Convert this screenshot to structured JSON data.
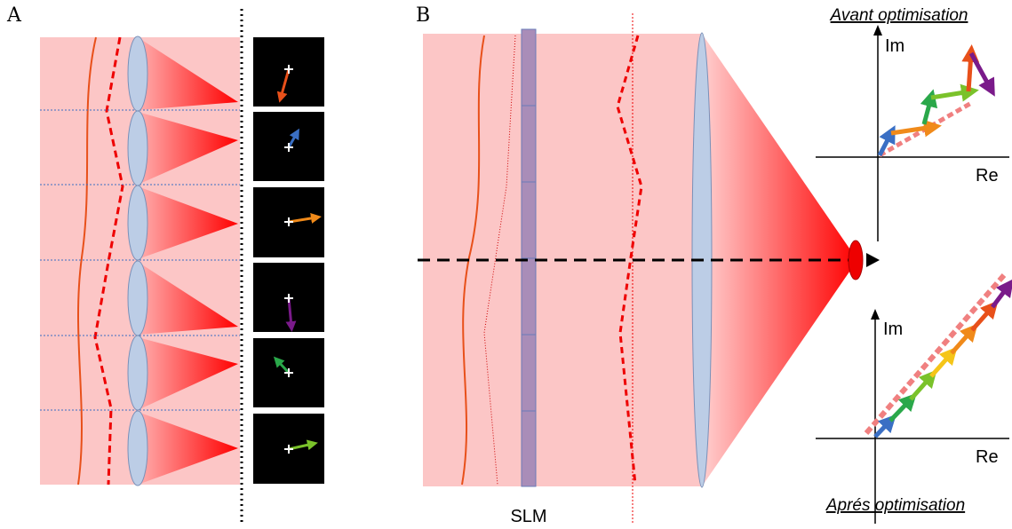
{
  "panels": [
    {
      "label": "A"
    },
    {
      "label": "B",
      "slm_label": "SLM"
    }
  ],
  "plots": [
    {
      "title": "Avant optimisation",
      "y_axis": "Im",
      "x_axis": "Re"
    },
    {
      "title": "Aprés optimisation",
      "y_axis": "Im",
      "x_axis": "Re"
    }
  ]
}
